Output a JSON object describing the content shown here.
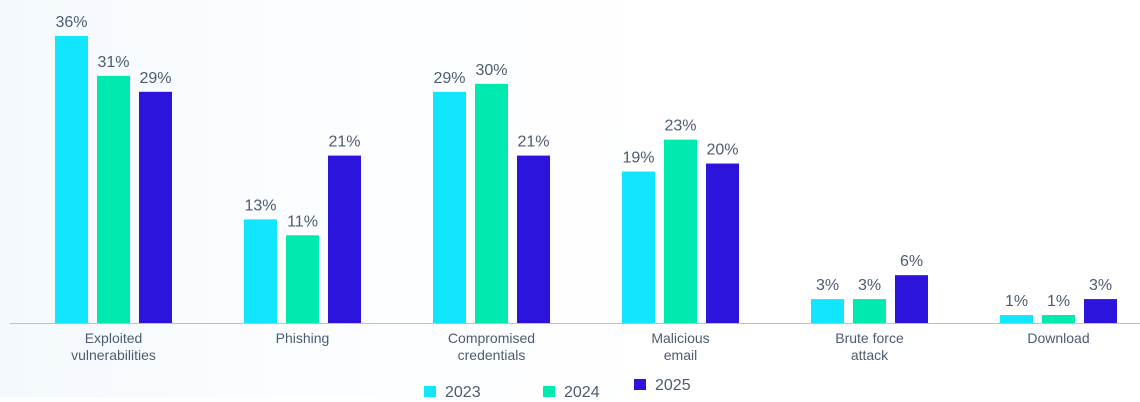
{
  "chart_data": {
    "type": "bar",
    "categories": [
      [
        "Exploited",
        "vulnerabilities"
      ],
      [
        "Phishing"
      ],
      [
        "Compromised",
        "credentials"
      ],
      [
        "Malicious",
        "email"
      ],
      [
        "Brute force",
        "attack"
      ],
      [
        "Download"
      ]
    ],
    "series": [
      {
        "name": "2023",
        "values": [
          36,
          13,
          29,
          19,
          3,
          1
        ],
        "labels": [
          "36%",
          "13%",
          "29%",
          "19%",
          "3%",
          "1%"
        ],
        "color": "#12e6ff"
      },
      {
        "name": "2024",
        "values": [
          31,
          11,
          30,
          23,
          3,
          1
        ],
        "labels": [
          "31%",
          "11%",
          "30%",
          "23%",
          "3%",
          "1%"
        ],
        "color": "#00eab0"
      },
      {
        "name": "2025",
        "values": [
          29,
          21,
          21,
          20,
          6,
          3
        ],
        "labels": [
          "29%",
          "21%",
          "21%",
          "20%",
          "6%",
          "3%"
        ],
        "color": "#2c14dc"
      }
    ],
    "ylim": [
      0,
      36
    ],
    "grid": false,
    "legend_position": "bottom-center",
    "baseline_color": "#b9c2cc",
    "text_color": "#4d5b70"
  }
}
